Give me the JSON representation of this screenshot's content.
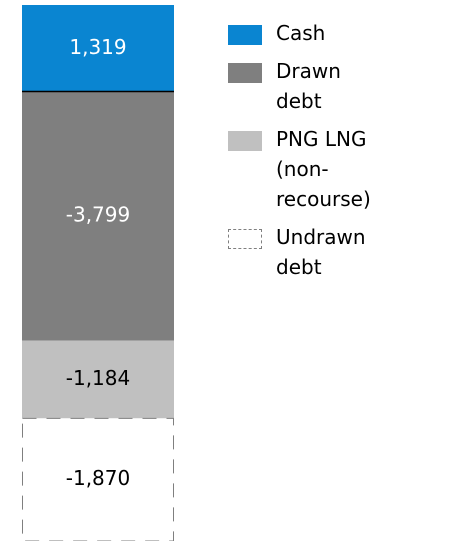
{
  "chart_data": {
    "type": "stacked-bar",
    "series": [
      {
        "name": "Cash",
        "color": "#0a85d1",
        "label_color": "#ffffff",
        "values": [
          1319
        ],
        "value_labels": [
          "1,319"
        ]
      },
      {
        "name": "Drawn debt",
        "color": "#7f7f7f",
        "label_color": "#ffffff",
        "values": [
          -3799
        ],
        "value_labels": [
          "-3,799"
        ]
      },
      {
        "name": "PNG LNG (non-recourse)",
        "color": "#c0c0c0",
        "label_color": "#000000",
        "values": [
          -1184
        ],
        "value_labels": [
          "-1,184"
        ]
      },
      {
        "name": "Undrawn debt",
        "color": "#ffffff",
        "label_color": "#000000",
        "border": "dashed",
        "values": [
          -1870
        ],
        "value_labels": [
          "-1,870"
        ]
      }
    ]
  }
}
